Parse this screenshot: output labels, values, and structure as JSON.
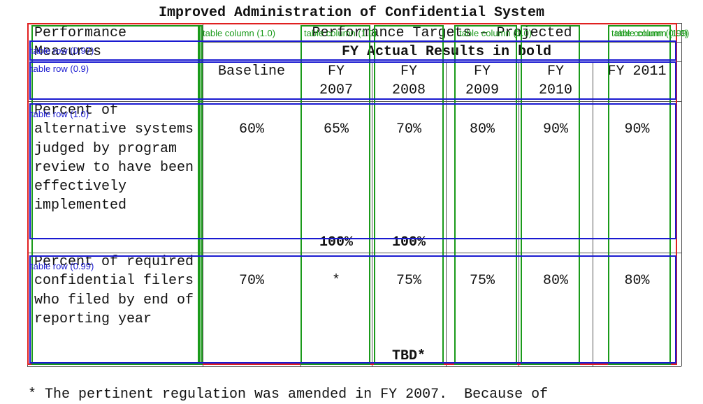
{
  "document": {
    "title": "Improved Administration of Confidential System",
    "table": {
      "header": {
        "measures": "Performance Measures",
        "targets": "Performance Targets – Projected",
        "actual_note": "FY Actual Results in bold",
        "columns": [
          "Baseline",
          "FY 2007",
          "FY 2008",
          "FY 2009",
          "FY 2010",
          "FY 2011"
        ]
      },
      "rows": [
        {
          "measure": "Percent of alternative systems judged by program review to have been effectively implemented",
          "cells": [
            "60%",
            "65%",
            "70%",
            "80%",
            "90%",
            "90%"
          ],
          "actuals": [
            null,
            "100%",
            "100%",
            null,
            null,
            null
          ]
        },
        {
          "measure": "Percent of required confidential filers who filed by end of reporting year",
          "cells": [
            "70%",
            "*",
            "75%",
            "75%",
            "80%",
            "80%"
          ],
          "actuals": [
            null,
            null,
            "TBD*",
            null,
            null,
            null
          ]
        }
      ]
    },
    "footnote": "* The pertinent regulation was amended in FY 2007.  Because of",
    "overlay_labels": {
      "columns": [
        "table column (1.0)",
        "table column (1.0)",
        "table column (1.0)",
        "table column (0.99)",
        "table column (1.0)"
      ],
      "rows": [
        "table row (0.97)",
        "table row (0.9)",
        "table row (1.0)",
        "table row (0.99)"
      ]
    }
  }
}
